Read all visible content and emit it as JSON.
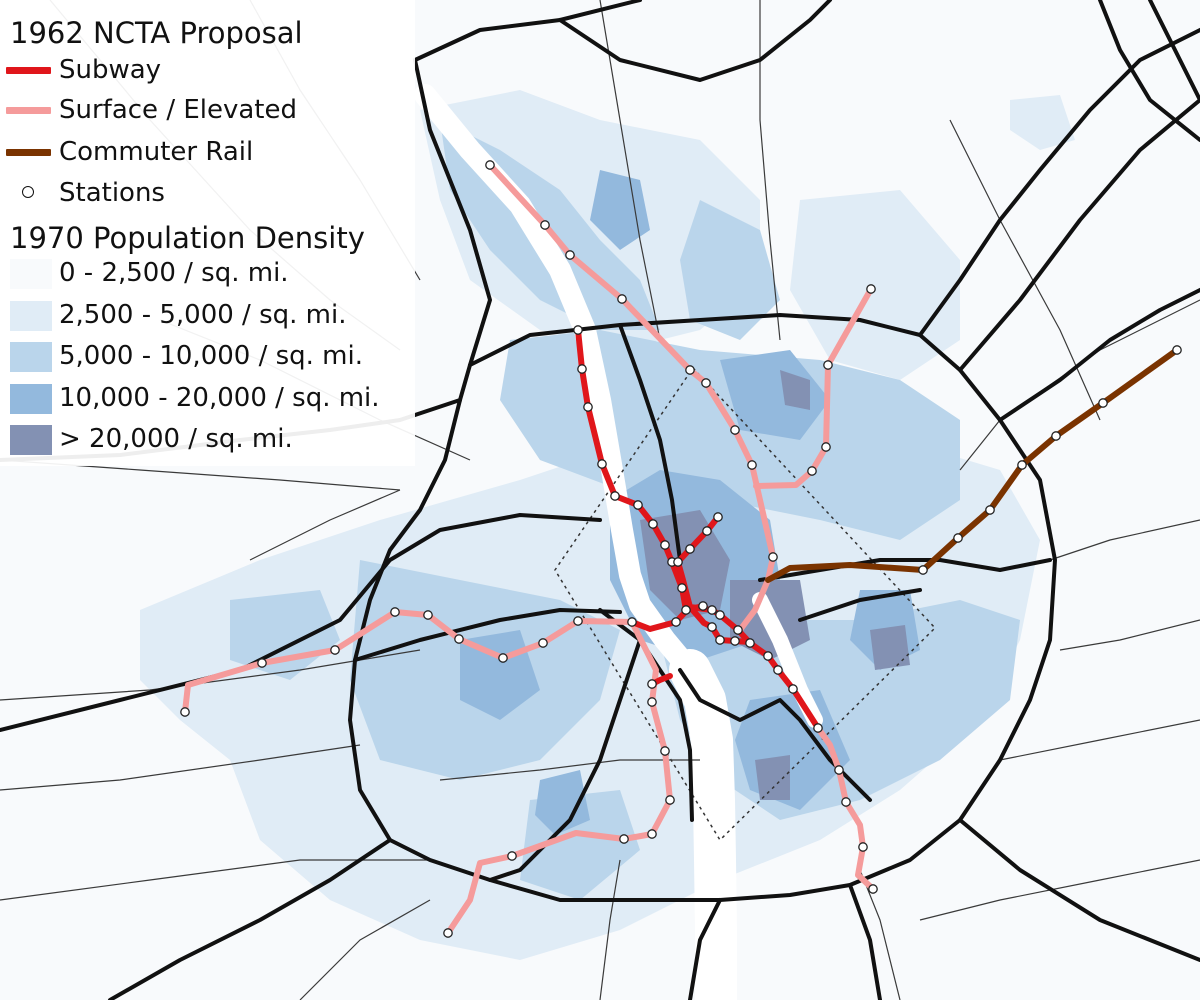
{
  "legend": {
    "proposal_title": "1962 NCTA Proposal",
    "lines": [
      {
        "label": "Subway",
        "color": "#e0161b"
      },
      {
        "label": "Surface / Elevated",
        "color": "#f59b9b"
      },
      {
        "label": "Commuter Rail",
        "color": "#7a3300"
      }
    ],
    "stations_label": "Stations",
    "density_title": "1970 Population Density",
    "density_classes": [
      {
        "label": "0 - 2,500 / sq. mi.",
        "color": "#f8fafc"
      },
      {
        "label": "2,500 - 5,000 / sq. mi.",
        "color": "#e0ecf6"
      },
      {
        "label": "5,000 - 10,000 / sq. mi.",
        "color": "#bad5eb"
      },
      {
        "label": "10,000 - 20,000 / sq. mi.",
        "color": "#93b9dd"
      },
      {
        "label": "> 20,000 / sq. mi.",
        "color": "#8391b3"
      }
    ]
  },
  "colors": {
    "road": "#111111",
    "river": "#ffffff",
    "boundary": "#333333",
    "station_fill": "#ffffff",
    "station_stroke": "#222222"
  }
}
